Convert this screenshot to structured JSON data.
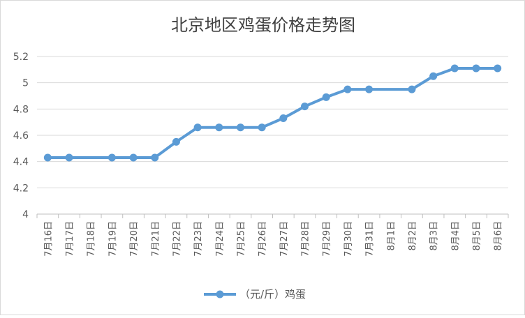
{
  "chart_data": {
    "type": "line",
    "title": "北京地区鸡蛋价格走势图",
    "xlabel": "",
    "ylabel": "",
    "ylim": [
      4,
      5.2
    ],
    "yticks": [
      "4",
      "4.2",
      "4.4",
      "4.6",
      "4.8",
      "5",
      "5.2"
    ],
    "categories": [
      "7月16日",
      "7月17日",
      "7月18日",
      "7月19日",
      "7月20日",
      "7月21日",
      "7月22日",
      "7月23日",
      "7月24日",
      "7月25日",
      "7月26日",
      "7月27日",
      "7月28日",
      "7月29日",
      "7月30日",
      "7月31日",
      "8月1日",
      "8月2日",
      "8月3日",
      "8月4日",
      "8月5日",
      "8月6日"
    ],
    "series": [
      {
        "name": "（元/斤）鸡蛋",
        "color": "#5b9bd5",
        "x": [
          "7月16日",
          "7月17日",
          "7月19日",
          "7月20日",
          "7月21日",
          "7月22日",
          "7月23日",
          "7月24日",
          "7月25日",
          "7月26日",
          "7月27日",
          "7月28日",
          "7月29日",
          "7月30日",
          "7月31日",
          "8月2日",
          "8月3日",
          "8月4日",
          "8月5日",
          "8月6日"
        ],
        "values": [
          4.43,
          4.43,
          4.43,
          4.43,
          4.43,
          4.55,
          4.66,
          4.66,
          4.66,
          4.66,
          4.73,
          4.82,
          4.89,
          4.95,
          4.95,
          4.95,
          5.05,
          5.11,
          5.11,
          5.11
        ]
      }
    ],
    "grid": true,
    "legend_position": "bottom"
  }
}
